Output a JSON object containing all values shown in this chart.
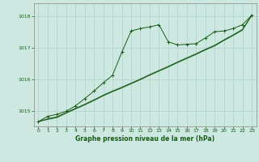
{
  "xlabel": "Graphe pression niveau de la mer (hPa)",
  "background_color": "#cce8e0",
  "line_color": "#1a5c1a",
  "grid_color": "#a8ccc4",
  "xlim": [
    -0.5,
    23.5
  ],
  "ylim": [
    1014.5,
    1018.4
  ],
  "yticks": [
    1015,
    1016,
    1017,
    1018
  ],
  "xticks": [
    0,
    1,
    2,
    3,
    4,
    5,
    6,
    7,
    8,
    9,
    10,
    11,
    12,
    13,
    14,
    15,
    16,
    17,
    18,
    19,
    20,
    21,
    22,
    23
  ],
  "series1_x": [
    0,
    1,
    2,
    3,
    4,
    5,
    6,
    7,
    8,
    9,
    10,
    11,
    12,
    13,
    14,
    15,
    16,
    17,
    18,
    19,
    20,
    21,
    22,
    23
  ],
  "series1_y": [
    1014.65,
    1014.82,
    1014.88,
    1014.98,
    1015.15,
    1015.38,
    1015.62,
    1015.88,
    1016.12,
    1016.85,
    1017.52,
    1017.6,
    1017.65,
    1017.72,
    1017.18,
    1017.08,
    1017.1,
    1017.12,
    1017.3,
    1017.5,
    1017.52,
    1017.6,
    1017.72,
    1018.02
  ],
  "series2_x": [
    0,
    1,
    2,
    3,
    4,
    5,
    6,
    7,
    8,
    9,
    10,
    11,
    12,
    13,
    14,
    15,
    16,
    17,
    18,
    19,
    20,
    21,
    22,
    23
  ],
  "series2_y": [
    1014.65,
    1014.72,
    1014.78,
    1014.92,
    1015.05,
    1015.18,
    1015.32,
    1015.47,
    1015.6,
    1015.72,
    1015.85,
    1015.98,
    1016.12,
    1016.25,
    1016.38,
    1016.52,
    1016.65,
    1016.78,
    1016.92,
    1017.05,
    1017.22,
    1017.38,
    1017.55,
    1018.02
  ],
  "series3_x": [
    0,
    1,
    2,
    3,
    4,
    5,
    6,
    7,
    8,
    9,
    10,
    11,
    12,
    13,
    14,
    15,
    16,
    17,
    18,
    19,
    20,
    21,
    22,
    23
  ],
  "series3_y": [
    1014.65,
    1014.74,
    1014.8,
    1014.94,
    1015.07,
    1015.2,
    1015.34,
    1015.49,
    1015.62,
    1015.74,
    1015.87,
    1016.0,
    1016.14,
    1016.27,
    1016.4,
    1016.54,
    1016.67,
    1016.8,
    1016.94,
    1017.07,
    1017.24,
    1017.4,
    1017.57,
    1018.02
  ]
}
